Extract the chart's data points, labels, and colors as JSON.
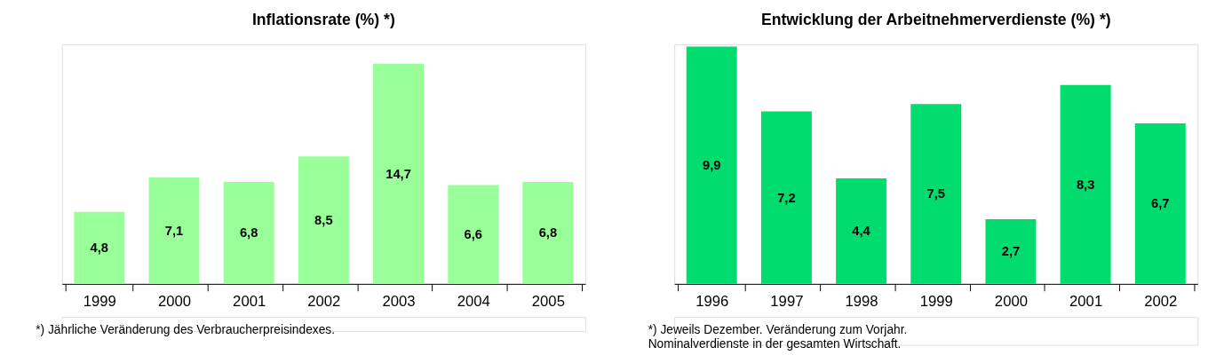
{
  "chart_data": [
    {
      "type": "bar",
      "title": "Inflationsrate (%) *)",
      "categories": [
        "1999",
        "2000",
        "2001",
        "2002",
        "2003",
        "2004",
        "2005"
      ],
      "values": [
        4.8,
        7.1,
        6.8,
        8.5,
        14.7,
        6.6,
        6.8
      ],
      "color": "#99ff99",
      "value_labels": [
        "4,8",
        "7,1",
        "6,8",
        "8,5",
        "14,7",
        "6,6",
        "6,8"
      ],
      "annotations": [
        "*) Jährliche Veränderung des Verbraucherpreisindexes."
      ]
    },
    {
      "type": "bar",
      "title": "Entwicklung der Arbeitnehmerverdienste (%) *)",
      "categories": [
        "1996",
        "1997",
        "1998",
        "1999",
        "2000",
        "2001",
        "2002"
      ],
      "values": [
        9.9,
        7.2,
        4.4,
        7.5,
        2.7,
        8.3,
        6.7
      ],
      "color": "#00dd6e",
      "value_labels": [
        "9,9",
        "7,2",
        "4,4",
        "7,5",
        "2,7",
        "8,3",
        "6,7"
      ],
      "annotations": [
        "*) Jeweils Dezember. Veränderung zum Vorjahr.",
        "    Nominalverdienste in der gesamten Wirtschaft."
      ]
    }
  ]
}
